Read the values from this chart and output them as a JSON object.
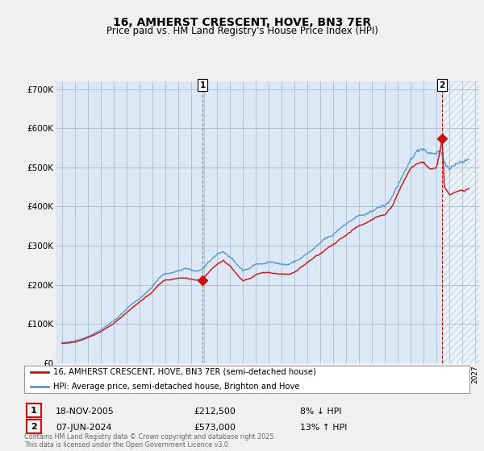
{
  "title": "16, AMHERST CRESCENT, HOVE, BN3 7ER",
  "subtitle": "Price paid vs. HM Land Registry's House Price Index (HPI)",
  "ylim": [
    0,
    720000
  ],
  "xlim_start": 1994.5,
  "xlim_end": 2027.3,
  "yticks": [
    0,
    100000,
    200000,
    300000,
    400000,
    500000,
    600000,
    700000
  ],
  "ytick_labels": [
    "£0",
    "£100K",
    "£200K",
    "£300K",
    "£400K",
    "£500K",
    "£600K",
    "£700K"
  ],
  "xticks": [
    1995,
    1996,
    1997,
    1998,
    1999,
    2000,
    2001,
    2002,
    2003,
    2004,
    2005,
    2006,
    2007,
    2008,
    2009,
    2010,
    2011,
    2012,
    2013,
    2014,
    2015,
    2016,
    2017,
    2018,
    2019,
    2020,
    2021,
    2022,
    2023,
    2024,
    2025,
    2026,
    2027
  ],
  "background_color": "#f0f0f0",
  "plot_bg_color": "#dce8f5",
  "grid_color": "#aabbcc",
  "hpi_color": "#5599cc",
  "price_color": "#cc1111",
  "vline1_color": "#888888",
  "vline1_style": "--",
  "vline2_color": "#cc1111",
  "vline2_style": "--",
  "marker1_x": 2005.88,
  "marker1_y": 212500,
  "marker2_x": 2024.44,
  "marker2_y": 573000,
  "vline1_x": 2005.88,
  "vline2_x": 2024.44,
  "hatch_start": 2024.44,
  "legend_red_label": "16, AMHERST CRESCENT, HOVE, BN3 7ER (semi-detached house)",
  "legend_blue_label": "HPI: Average price, semi-detached house, Brighton and Hove",
  "annotation1_label": "1",
  "annotation1_date": "18-NOV-2005",
  "annotation1_price": "£212,500",
  "annotation1_hpi": "8% ↓ HPI",
  "annotation2_label": "2",
  "annotation2_date": "07-JUN-2024",
  "annotation2_price": "£573,000",
  "annotation2_hpi": "13% ↑ HPI",
  "footer": "Contains HM Land Registry data © Crown copyright and database right 2025.\nThis data is licensed under the Open Government Licence v3.0.",
  "title_fontsize": 10,
  "subtitle_fontsize": 8.5
}
